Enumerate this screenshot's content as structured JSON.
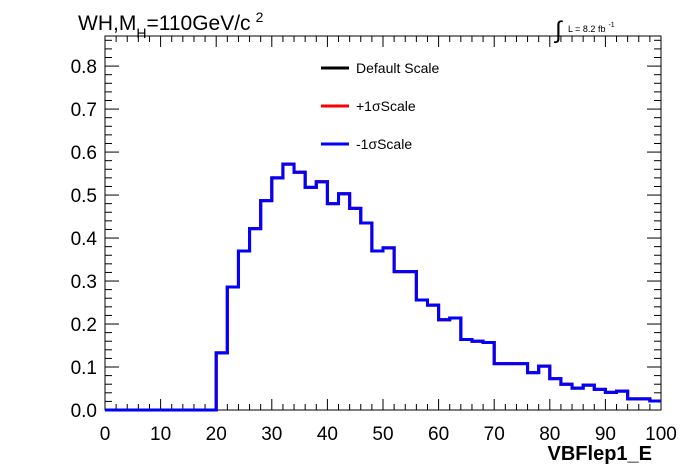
{
  "header": {
    "title_main": "WH,M",
    "title_sub": "H",
    "title_tail": "=110GeV/c",
    "title_sup": "2",
    "lumi_integral": "∫",
    "lumi_text": "L = 8.2 fb",
    "lumi_sup": "-1"
  },
  "chart_data": {
    "type": "line",
    "style": "step",
    "xlabel": "VBFlep1_E",
    "ylabel": "",
    "xlim": [
      0,
      100
    ],
    "ylim": [
      0,
      0.87
    ],
    "grid": false,
    "legend_position": "top-center",
    "x_ticks": [
      "0",
      "10",
      "20",
      "30",
      "40",
      "50",
      "60",
      "70",
      "80",
      "90",
      "100"
    ],
    "y_ticks": [
      "0.0",
      "0.1",
      "0.2",
      "0.3",
      "0.4",
      "0.5",
      "0.6",
      "0.7",
      "0.8"
    ],
    "bin_edges": [
      0,
      2,
      4,
      6,
      8,
      10,
      12,
      14,
      16,
      18,
      20,
      22,
      24,
      26,
      28,
      30,
      32,
      34,
      36,
      38,
      40,
      42,
      44,
      46,
      48,
      50,
      52,
      54,
      56,
      58,
      60,
      62,
      64,
      66,
      68,
      70,
      72,
      74,
      76,
      78,
      80,
      82,
      84,
      86,
      88,
      90,
      92,
      94,
      96,
      98,
      100
    ],
    "series": [
      {
        "name": "Default Scale",
        "color": "#000000",
        "values": [
          0,
          0,
          0,
          0,
          0,
          0,
          0,
          0,
          0,
          0,
          0.133,
          0.286,
          0.37,
          0.422,
          0.487,
          0.54,
          0.572,
          0.553,
          0.518,
          0.531,
          0.48,
          0.503,
          0.469,
          0.435,
          0.37,
          0.377,
          0.322,
          0.322,
          0.256,
          0.244,
          0.21,
          0.214,
          0.164,
          0.16,
          0.157,
          0.108,
          0.108,
          0.108,
          0.087,
          0.102,
          0.073,
          0.06,
          0.051,
          0.058,
          0.048,
          0.041,
          0.044,
          0.026,
          0.026,
          0.021
        ]
      },
      {
        "name": "+1σScale",
        "color": "#ff0000",
        "values": [
          0,
          0,
          0,
          0,
          0,
          0,
          0,
          0,
          0,
          0,
          0.133,
          0.286,
          0.37,
          0.422,
          0.487,
          0.54,
          0.572,
          0.553,
          0.518,
          0.531,
          0.48,
          0.503,
          0.469,
          0.435,
          0.37,
          0.377,
          0.322,
          0.322,
          0.256,
          0.244,
          0.21,
          0.214,
          0.164,
          0.16,
          0.157,
          0.108,
          0.108,
          0.108,
          0.087,
          0.102,
          0.073,
          0.06,
          0.051,
          0.058,
          0.048,
          0.041,
          0.044,
          0.026,
          0.026,
          0.021
        ]
      },
      {
        "name": "-1σScale",
        "color": "#0000ff",
        "values": [
          0,
          0,
          0,
          0,
          0,
          0,
          0,
          0,
          0,
          0,
          0.133,
          0.286,
          0.37,
          0.422,
          0.487,
          0.54,
          0.572,
          0.553,
          0.518,
          0.531,
          0.48,
          0.503,
          0.469,
          0.435,
          0.37,
          0.377,
          0.322,
          0.322,
          0.256,
          0.244,
          0.21,
          0.214,
          0.164,
          0.16,
          0.157,
          0.108,
          0.108,
          0.108,
          0.087,
          0.102,
          0.073,
          0.06,
          0.051,
          0.058,
          0.048,
          0.041,
          0.044,
          0.026,
          0.026,
          0.021
        ]
      }
    ]
  }
}
